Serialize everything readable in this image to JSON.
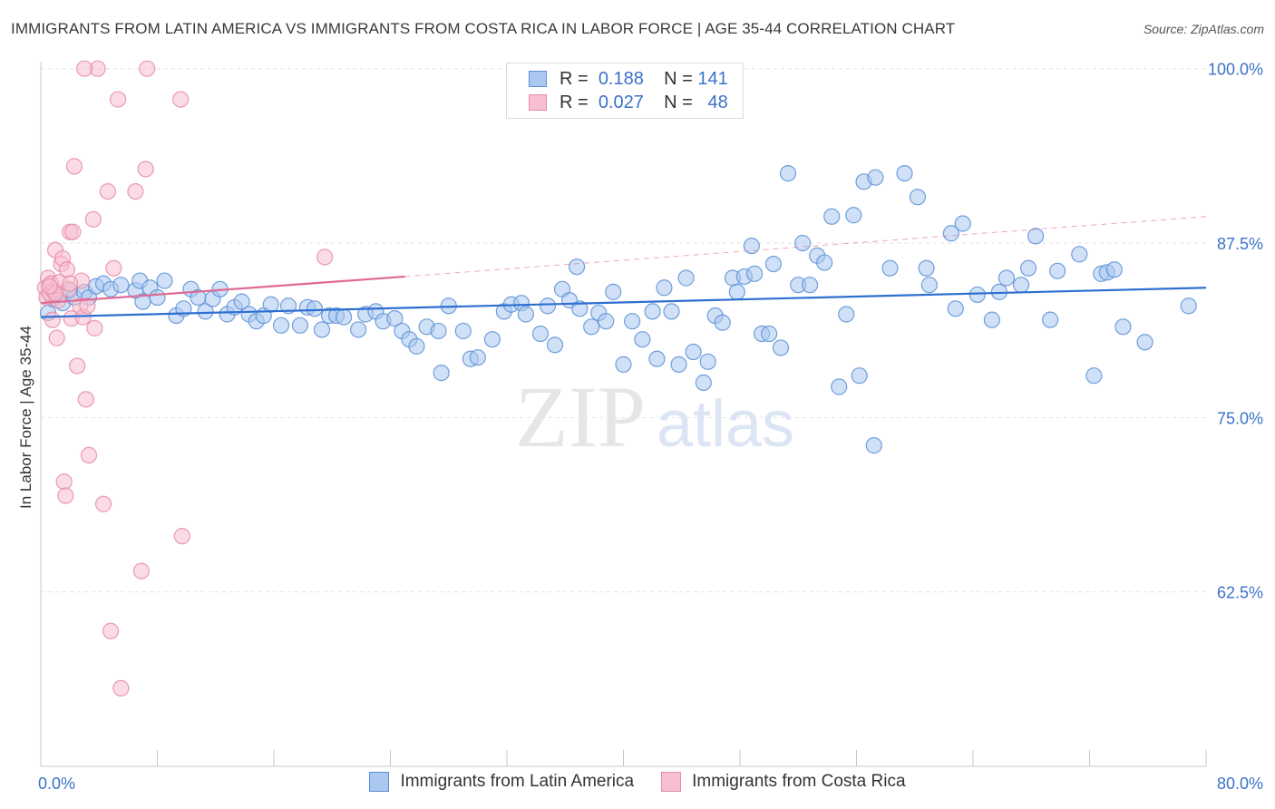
{
  "header": {
    "title": "IMMIGRANTS FROM LATIN AMERICA VS IMMIGRANTS FROM COSTA RICA IN LABOR FORCE | AGE 35-44 CORRELATION CHART",
    "source": "Source: ZipAtlas.com"
  },
  "watermark": {
    "zip": "ZIP",
    "atlas": "atlas"
  },
  "legend": {
    "r_label": "R =",
    "n_label": "N =",
    "series": [
      {
        "name": "Immigrants from Latin America",
        "r": "0.188",
        "n": "141"
      },
      {
        "name": "Immigrants from Costa Rica",
        "r": "0.027",
        "n": "48"
      }
    ]
  },
  "colors": {
    "blue_fill": "#aac8f0",
    "blue_stroke": "#5b8fd6",
    "blue_line": "#2f6fd0",
    "pink_fill": "#f7bfd0",
    "pink_stroke": "#e58aa8",
    "pink_line": "#e06a96",
    "axis_label": "#3b72c9"
  },
  "chart_data": {
    "type": "scatter",
    "title": "IMMIGRANTS FROM LATIN AMERICA VS IMMIGRANTS FROM COSTA RICA IN LABOR FORCE | AGE 35-44 CORRELATION CHART",
    "xlabel": "",
    "ylabel": "In Labor Force | Age 35-44",
    "xlim": [
      0,
      80
    ],
    "ylim": [
      50,
      100.5
    ],
    "x_tick_labels": [
      "0.0%",
      "80.0%"
    ],
    "y_ticks": [
      62.5,
      75.0,
      87.5,
      100.0
    ],
    "y_tick_labels": [
      "62.5%",
      "75.0%",
      "87.5%",
      "100.0%"
    ],
    "grid": true,
    "series": [
      {
        "name": "Immigrants from Latin America",
        "r": 0.188,
        "n": 141,
        "trend": {
          "x": [
            0,
            80
          ],
          "y": [
            82.2,
            84.3
          ]
        },
        "points": [
          [
            0.5,
            82.5
          ],
          [
            0.8,
            83.5
          ],
          [
            1.2,
            83.8
          ],
          [
            1.5,
            83.2
          ],
          [
            2.0,
            84.1
          ],
          [
            2.3,
            83.6
          ],
          [
            3.0,
            84.0
          ],
          [
            3.3,
            83.6
          ],
          [
            3.8,
            84.4
          ],
          [
            4.3,
            84.6
          ],
          [
            4.8,
            84.2
          ],
          [
            5.5,
            84.5
          ],
          [
            6.5,
            84.1
          ],
          [
            6.8,
            84.8
          ],
          [
            7.0,
            83.3
          ],
          [
            7.5,
            84.3
          ],
          [
            8.0,
            83.6
          ],
          [
            8.5,
            84.8
          ],
          [
            9.3,
            82.3
          ],
          [
            9.8,
            82.8
          ],
          [
            10.3,
            84.2
          ],
          [
            10.8,
            83.6
          ],
          [
            11.3,
            82.6
          ],
          [
            11.8,
            83.5
          ],
          [
            12.3,
            84.2
          ],
          [
            12.8,
            82.4
          ],
          [
            13.3,
            82.9
          ],
          [
            13.8,
            83.3
          ],
          [
            14.3,
            82.4
          ],
          [
            14.8,
            81.9
          ],
          [
            15.3,
            82.3
          ],
          [
            15.8,
            83.1
          ],
          [
            16.5,
            81.6
          ],
          [
            17.0,
            83.0
          ],
          [
            17.8,
            81.6
          ],
          [
            18.3,
            82.9
          ],
          [
            18.8,
            82.8
          ],
          [
            19.3,
            81.3
          ],
          [
            19.8,
            82.3
          ],
          [
            20.3,
            82.3
          ],
          [
            20.8,
            82.2
          ],
          [
            21.8,
            81.3
          ],
          [
            22.3,
            82.4
          ],
          [
            23.0,
            82.6
          ],
          [
            23.5,
            81.9
          ],
          [
            24.3,
            82.1
          ],
          [
            24.8,
            81.2
          ],
          [
            25.3,
            80.6
          ],
          [
            25.8,
            80.1
          ],
          [
            26.5,
            81.5
          ],
          [
            27.3,
            81.2
          ],
          [
            27.5,
            78.2
          ],
          [
            28.0,
            83.0
          ],
          [
            29.0,
            81.2
          ],
          [
            29.5,
            79.2
          ],
          [
            30.0,
            79.3
          ],
          [
            31.0,
            80.6
          ],
          [
            31.8,
            82.6
          ],
          [
            32.3,
            83.1
          ],
          [
            33.0,
            83.2
          ],
          [
            33.3,
            82.4
          ],
          [
            34.3,
            81.0
          ],
          [
            34.8,
            83.0
          ],
          [
            35.3,
            80.2
          ],
          [
            35.8,
            84.2
          ],
          [
            36.3,
            83.4
          ],
          [
            36.8,
            85.8
          ],
          [
            37.0,
            82.8
          ],
          [
            37.8,
            81.5
          ],
          [
            38.3,
            82.5
          ],
          [
            38.8,
            81.9
          ],
          [
            39.3,
            84.0
          ],
          [
            40.0,
            78.8
          ],
          [
            40.6,
            81.9
          ],
          [
            41.3,
            80.6
          ],
          [
            42.0,
            82.6
          ],
          [
            42.3,
            79.2
          ],
          [
            42.8,
            84.3
          ],
          [
            43.3,
            82.6
          ],
          [
            43.8,
            78.8
          ],
          [
            44.3,
            85.0
          ],
          [
            44.8,
            79.7
          ],
          [
            45.5,
            77.5
          ],
          [
            45.8,
            79.0
          ],
          [
            46.3,
            82.3
          ],
          [
            46.8,
            81.8
          ],
          [
            47.5,
            85.0
          ],
          [
            47.8,
            84.0
          ],
          [
            48.3,
            85.1
          ],
          [
            48.8,
            87.3
          ],
          [
            49.0,
            85.3
          ],
          [
            49.5,
            81.0
          ],
          [
            50.0,
            81.0
          ],
          [
            50.3,
            86.0
          ],
          [
            50.8,
            80.0
          ],
          [
            51.3,
            92.5
          ],
          [
            52.0,
            84.5
          ],
          [
            52.3,
            87.5
          ],
          [
            52.8,
            84.5
          ],
          [
            53.3,
            86.6
          ],
          [
            53.8,
            86.1
          ],
          [
            54.3,
            89.4
          ],
          [
            54.8,
            77.2
          ],
          [
            55.3,
            82.4
          ],
          [
            55.8,
            89.5
          ],
          [
            56.2,
            78.0
          ],
          [
            56.5,
            91.9
          ],
          [
            57.2,
            73.0
          ],
          [
            57.3,
            92.2
          ],
          [
            58.3,
            85.7
          ],
          [
            59.3,
            92.5
          ],
          [
            60.2,
            90.8
          ],
          [
            60.8,
            85.7
          ],
          [
            61.0,
            84.5
          ],
          [
            62.5,
            88.2
          ],
          [
            62.8,
            82.8
          ],
          [
            63.3,
            88.9
          ],
          [
            64.3,
            83.8
          ],
          [
            65.3,
            82.0
          ],
          [
            65.8,
            84.0
          ],
          [
            66.3,
            85.0
          ],
          [
            67.3,
            84.5
          ],
          [
            67.8,
            85.7
          ],
          [
            68.3,
            88.0
          ],
          [
            69.3,
            82.0
          ],
          [
            69.8,
            85.5
          ],
          [
            71.3,
            86.7
          ],
          [
            72.3,
            78.0
          ],
          [
            72.8,
            85.3
          ],
          [
            73.2,
            85.4
          ],
          [
            73.7,
            85.6
          ],
          [
            74.3,
            81.5
          ],
          [
            75.8,
            80.4
          ],
          [
            78.8,
            83.0
          ]
        ]
      },
      {
        "name": "Immigrants from Costa Rica",
        "r": 0.027,
        "n": 48,
        "trend": {
          "x": [
            0,
            25
          ],
          "y": [
            83.2,
            85.1
          ]
        },
        "trend_extended": {
          "x": [
            25,
            80
          ],
          "y": [
            85.1,
            89.4
          ]
        },
        "points": [
          [
            0.3,
            84.3
          ],
          [
            0.4,
            83.6
          ],
          [
            0.5,
            85.0
          ],
          [
            0.6,
            83.9
          ],
          [
            0.7,
            84.6
          ],
          [
            0.8,
            82.0
          ],
          [
            0.9,
            84.1
          ],
          [
            1.0,
            87.0
          ],
          [
            1.1,
            80.7
          ],
          [
            1.2,
            83.4
          ],
          [
            1.3,
            84.7
          ],
          [
            1.4,
            86.0
          ],
          [
            1.5,
            86.4
          ],
          [
            1.6,
            70.4
          ],
          [
            1.7,
            69.4
          ],
          [
            1.8,
            85.6
          ],
          [
            1.9,
            84.2
          ],
          [
            2.0,
            88.3
          ],
          [
            2.1,
            82.1
          ],
          [
            2.2,
            88.3
          ],
          [
            2.3,
            93.0
          ],
          [
            2.5,
            78.7
          ],
          [
            2.7,
            83.0
          ],
          [
            2.8,
            84.8
          ],
          [
            2.9,
            82.2
          ],
          [
            3.1,
            76.3
          ],
          [
            3.2,
            83.0
          ],
          [
            3.3,
            72.3
          ],
          [
            3.6,
            89.2
          ],
          [
            3.7,
            81.4
          ],
          [
            3.9,
            100.0
          ],
          [
            4.3,
            68.8
          ],
          [
            4.6,
            91.2
          ],
          [
            4.8,
            59.7
          ],
          [
            5.0,
            85.7
          ],
          [
            5.3,
            97.8
          ],
          [
            5.5,
            55.6
          ],
          [
            6.5,
            91.2
          ],
          [
            6.9,
            64.0
          ],
          [
            7.2,
            92.8
          ],
          [
            7.3,
            100.0
          ],
          [
            9.6,
            97.8
          ],
          [
            9.7,
            66.5
          ],
          [
            19.5,
            86.5
          ],
          [
            2.0,
            84.6
          ],
          [
            1.0,
            83.9
          ],
          [
            3.0,
            100.0
          ],
          [
            0.6,
            84.4
          ]
        ]
      }
    ]
  }
}
